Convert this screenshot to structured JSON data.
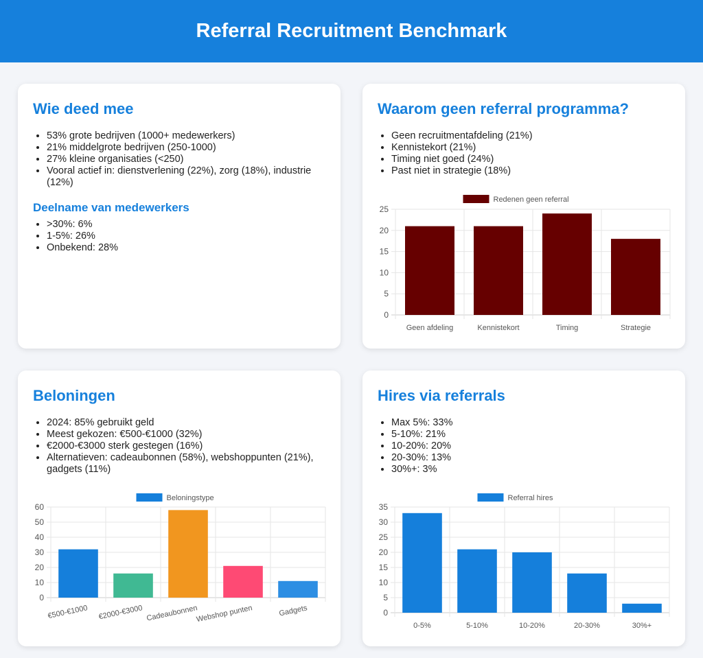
{
  "title": "Referral Recruitment Benchmark",
  "cards": [
    {
      "title": "Wie deed mee",
      "items": [
        "53% grote bedrijven (1000+ medewerkers)",
        "21% middelgrote bedrijven (250-1000)",
        "27% kleine organisaties (<250)",
        "Vooral actief in: dienstverlening (22%), zorg (18%), industrie (12%)"
      ],
      "subtitle": "Deelname van medewerkers",
      "subitems": [
        ">30%: 6%",
        "1-5%: 26%",
        "Onbekend: 28%"
      ]
    },
    {
      "title": "Waarom geen referral programma?",
      "items": [
        "Geen recruitmentafdeling (21%)",
        "Kennistekort (21%)",
        "Timing niet goed (24%)",
        "Past niet in strategie (18%)"
      ]
    },
    {
      "title": "Beloningen",
      "items": [
        "2024: 85% gebruikt geld",
        "Meest gekozen: €500-€1000 (32%)",
        "€2000-€3000 sterk gestegen (16%)",
        "Alternatieven: cadeaubonnen (58%), webshoppunten (21%), gadgets (11%)"
      ]
    },
    {
      "title": "Hires via referrals",
      "items": [
        "Max 5%: 33%",
        "5-10%: 21%",
        "10-20%: 20%",
        "20-30%: 13%",
        "30%+: 3%"
      ]
    }
  ],
  "chart_data": [
    {
      "type": "bar",
      "legend": "Redenen geen referral",
      "categories": [
        "Geen afdeling",
        "Kennistekort",
        "Timing",
        "Strategie"
      ],
      "values": [
        21,
        21,
        24,
        18
      ],
      "ylim": [
        0,
        25
      ],
      "yticks": [
        0,
        5,
        10,
        15,
        20,
        25
      ],
      "colors": [
        "#660000"
      ],
      "grid": true,
      "legend_position": "top"
    },
    {
      "type": "bar",
      "legend": "Beloningstype",
      "categories": [
        "€500-€1000",
        "€2000-€3000",
        "Cadeaubonnen",
        "Webshop punten",
        "Gadgets"
      ],
      "values": [
        32,
        16,
        58,
        21,
        11
      ],
      "ylim": [
        0,
        60
      ],
      "yticks": [
        0,
        10,
        20,
        30,
        40,
        50,
        60
      ],
      "colors": [
        "#157fdb",
        "#40b993",
        "#f1961f",
        "#fe4a74",
        "#2d8ee3"
      ],
      "grid": true,
      "legend_position": "top"
    },
    {
      "type": "bar",
      "legend": "Referral hires",
      "categories": [
        "0-5%",
        "5-10%",
        "10-20%",
        "20-30%",
        "30%+"
      ],
      "values": [
        33,
        21,
        20,
        13,
        3
      ],
      "ylim": [
        0,
        35
      ],
      "yticks": [
        0,
        5,
        10,
        15,
        20,
        25,
        30,
        35
      ],
      "colors": [
        "#157fdb"
      ],
      "grid": true,
      "legend_position": "top"
    }
  ]
}
